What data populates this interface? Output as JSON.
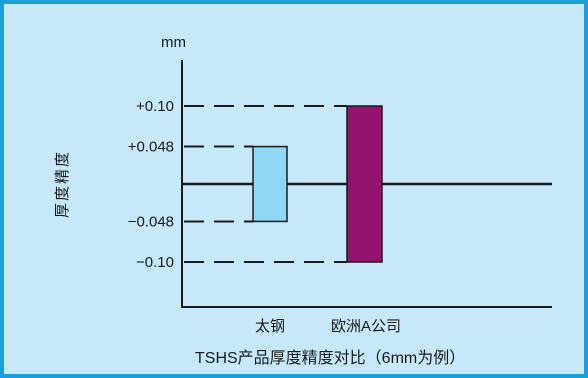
{
  "chart_data": {
    "type": "range-bar",
    "title": "",
    "caption": "TSHS产品厚度精度对比（6mm为例）",
    "unit": "mm",
    "ylabel": "厚度精度",
    "ylim": [
      -0.125,
      0.125
    ],
    "yticks": [
      0.1,
      0.048,
      -0.048,
      -0.1
    ],
    "ytick_labels": [
      "+0.10",
      "+0.048",
      "−0.048",
      "−0.10"
    ],
    "categories": [
      "太钢",
      "欧洲A公司"
    ],
    "series": [
      {
        "low": -0.048,
        "high": 0.048,
        "color": "#8fd8f5"
      },
      {
        "low": -0.1,
        "high": 0.1,
        "color": "#93136f"
      }
    ],
    "reference_line": 0,
    "grid": false
  }
}
